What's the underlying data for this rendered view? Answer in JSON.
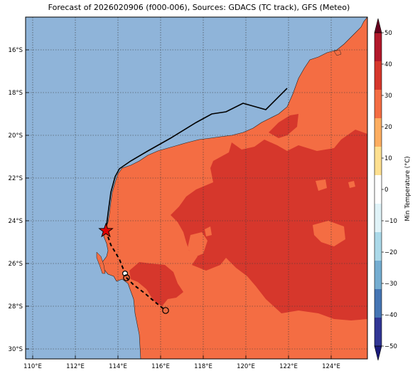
{
  "title": "Forecast of 2026020906 (f000-006), Sources: GDACS (TC track), GFS (Meteo)",
  "lat_labels": [
    "16°S",
    "18°S",
    "20°S",
    "22°S",
    "24°S",
    "26°S",
    "28°S",
    "30°S"
  ],
  "lon_labels": [
    "110°E",
    "112°E",
    "114°E",
    "116°E",
    "118°E",
    "120°E",
    "122°E",
    "124°E"
  ],
  "colorbar": {
    "label": "Min Temperature (°C)",
    "ticks": [
      "50",
      "40",
      "30",
      "20",
      "10",
      "0",
      "−10",
      "−20",
      "−30",
      "−40",
      "−50"
    ],
    "colors": [
      "#67001f",
      "#b2182b",
      "#d6372c",
      "#f46d43",
      "#fdae61",
      "#fee090",
      "#ffffff",
      "#e0f3f8",
      "#abd9e9",
      "#74add1",
      "#4575b4",
      "#313695",
      "#1a1a7a"
    ]
  },
  "map_colors": {
    "ocean": "#8fb4d9",
    "land_20_30": "#f46d43",
    "land_30_40": "#d6372c"
  },
  "track": {
    "past_path": "GDACS past track (solid)",
    "forecast_path": "forecast track (dashed)",
    "current_marker": "star",
    "forecast_points": 3
  }
}
